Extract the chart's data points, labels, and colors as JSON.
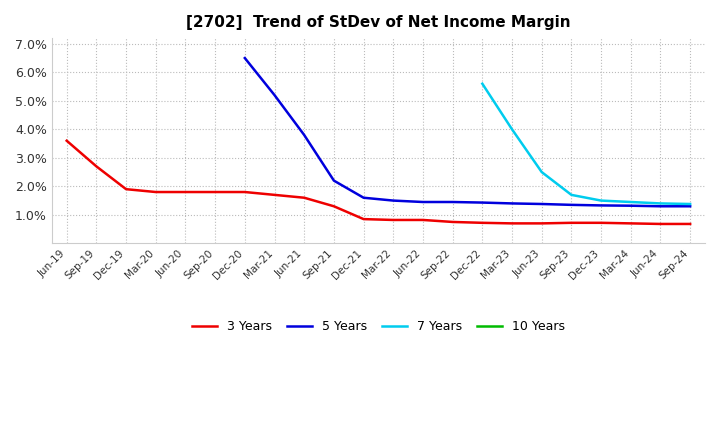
{
  "title": "[2702]  Trend of StDev of Net Income Margin",
  "title_fontsize": 11,
  "background_color": "#ffffff",
  "plot_bg_color": "#ffffff",
  "grid_color": "#bbbbbb",
  "ylim": [
    0.0,
    0.072
  ],
  "yticks": [
    0.01,
    0.02,
    0.03,
    0.04,
    0.05,
    0.06,
    0.07
  ],
  "ytick_labels": [
    "1.0%",
    "2.0%",
    "3.0%",
    "4.0%",
    "5.0%",
    "6.0%",
    "7.0%"
  ],
  "xtick_labels": [
    "Jun-19",
    "Sep-19",
    "Dec-19",
    "Mar-20",
    "Jun-20",
    "Sep-20",
    "Dec-20",
    "Mar-21",
    "Jun-21",
    "Sep-21",
    "Dec-21",
    "Mar-22",
    "Jun-22",
    "Sep-22",
    "Dec-22",
    "Mar-23",
    "Jun-23",
    "Sep-23",
    "Dec-23",
    "Mar-24",
    "Jun-24",
    "Sep-24"
  ],
  "series": {
    "3 Years": {
      "color": "#ee0000",
      "linewidth": 1.8,
      "data": [
        0.036,
        0.027,
        0.019,
        0.018,
        0.018,
        0.018,
        0.018,
        0.017,
        0.016,
        0.013,
        0.0085,
        0.0082,
        0.0082,
        0.0075,
        0.0072,
        0.007,
        0.007,
        0.0072,
        0.0072,
        0.007,
        0.0068,
        0.0068
      ]
    },
    "5 Years": {
      "color": "#0000dd",
      "linewidth": 1.8,
      "data": [
        null,
        null,
        null,
        null,
        null,
        null,
        0.065,
        0.052,
        0.038,
        0.022,
        0.016,
        0.015,
        0.0145,
        0.0145,
        0.0143,
        0.014,
        0.0138,
        0.0135,
        0.0133,
        0.0132,
        0.013,
        0.013
      ]
    },
    "7 Years": {
      "color": "#00ccee",
      "linewidth": 1.8,
      "data": [
        null,
        null,
        null,
        null,
        null,
        null,
        null,
        null,
        null,
        null,
        null,
        null,
        null,
        null,
        0.056,
        0.04,
        0.025,
        0.017,
        0.015,
        0.0145,
        0.014,
        0.0138
      ]
    },
    "10 Years": {
      "color": "#00bb00",
      "linewidth": 1.8,
      "data": [
        null,
        null,
        null,
        null,
        null,
        null,
        null,
        null,
        null,
        null,
        null,
        null,
        null,
        null,
        null,
        null,
        null,
        null,
        null,
        null,
        null,
        null
      ]
    }
  },
  "legend_order": [
    "3 Years",
    "5 Years",
    "7 Years",
    "10 Years"
  ]
}
